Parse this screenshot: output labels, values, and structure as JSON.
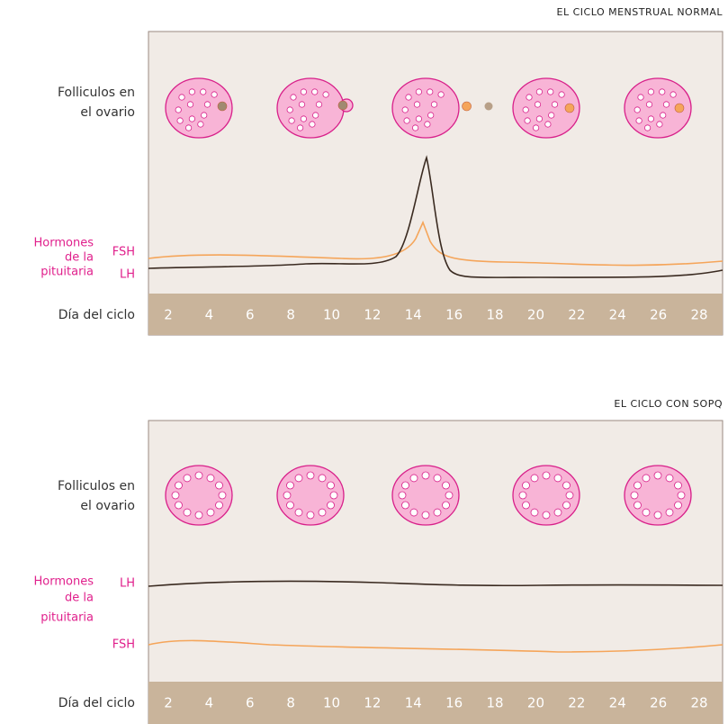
{
  "panels": [
    {
      "title": "EL CICLO MENSTRUAL NORMAL",
      "follicles_label": [
        "Folliculos en",
        "el ovario"
      ],
      "hormones_label": [
        "Hormones",
        "de la",
        "pituitaria"
      ],
      "fsh_label": "FSH",
      "lh_label": "LH",
      "day_label": "Día del ciclo",
      "days": [
        "2",
        "4",
        "6",
        "8",
        "10",
        "12",
        "14",
        "16",
        "18",
        "20",
        "22",
        "24",
        "26",
        "28"
      ]
    },
    {
      "title": "EL CICLO CON SOPQ",
      "follicles_label": [
        "Folliculos en",
        "el ovario"
      ],
      "hormones_label": [
        "Hormones",
        "de la",
        "pituitaria"
      ],
      "fsh_label": "FSH",
      "lh_label": "LH",
      "day_label": "Día del ciclo",
      "days": [
        "2",
        "4",
        "6",
        "8",
        "10",
        "12",
        "14",
        "16",
        "18",
        "20",
        "22",
        "24",
        "26",
        "28"
      ]
    }
  ]
}
